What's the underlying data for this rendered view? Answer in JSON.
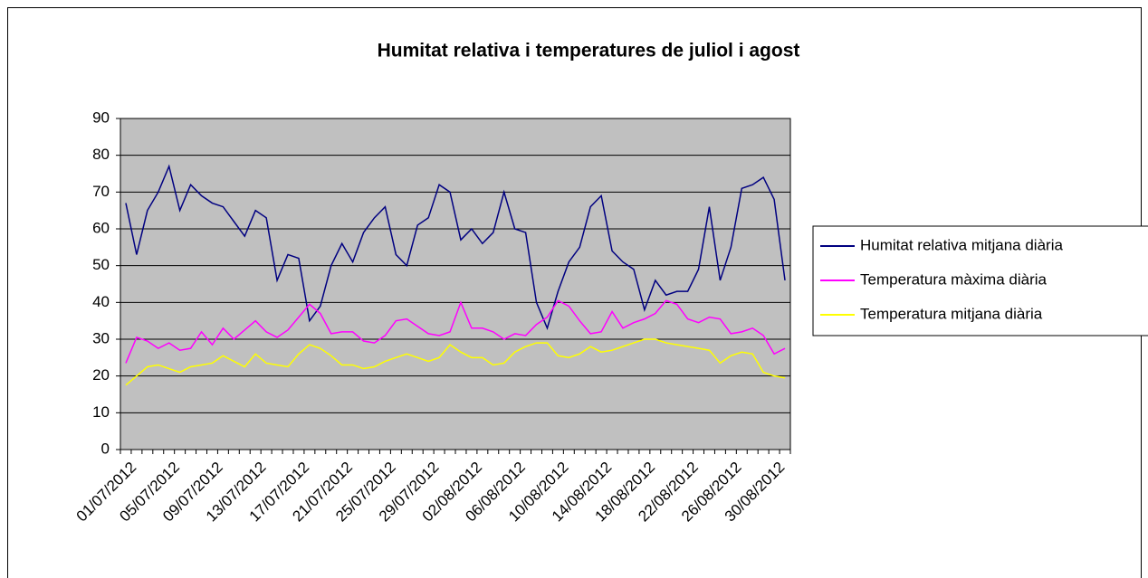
{
  "chart_data": {
    "type": "line",
    "title": "Humitat relativa i temperatures de juliol i agost",
    "categories": [
      "01/07/2012",
      null,
      null,
      null,
      "05/07/2012",
      null,
      null,
      null,
      "09/07/2012",
      null,
      null,
      null,
      "13/07/2012",
      null,
      null,
      null,
      "17/07/2012",
      null,
      null,
      null,
      "21/07/2012",
      null,
      null,
      null,
      "25/07/2012",
      null,
      null,
      null,
      "29/07/2012",
      null,
      null,
      null,
      "02/08/2012",
      null,
      null,
      null,
      "06/08/2012",
      null,
      null,
      null,
      "10/08/2012",
      null,
      null,
      null,
      "14/08/2012",
      null,
      null,
      null,
      "18/08/2012",
      null,
      null,
      null,
      "22/08/2012",
      null,
      null,
      null,
      "26/08/2012",
      null,
      null,
      null,
      "30/08/2012",
      null
    ],
    "series": [
      {
        "name": "Humitat relativa mitjana diària",
        "color": "#000080",
        "values": [
          67,
          53,
          65,
          70,
          77,
          65,
          72,
          69,
          67,
          66,
          62,
          58,
          65,
          63,
          46,
          53,
          52,
          35,
          39,
          50,
          56,
          51,
          59,
          63,
          66,
          53,
          50,
          61,
          63,
          72,
          70,
          57,
          60,
          56,
          59,
          70,
          60,
          59,
          40,
          33,
          43,
          51,
          55,
          66,
          69,
          54,
          51,
          49,
          38,
          46,
          42,
          43,
          43,
          49,
          66,
          46,
          55,
          71,
          72,
          74,
          68,
          46
        ]
      },
      {
        "name": "Temperatura màxima diària",
        "color": "#ff00ff",
        "values": [
          23.5,
          30.5,
          29.5,
          27.5,
          29,
          27,
          27.5,
          32,
          28.5,
          33,
          30,
          32.5,
          35,
          32,
          30.5,
          32.5,
          36,
          39.5,
          37,
          31.5,
          32,
          32,
          29.5,
          29,
          31,
          35,
          35.5,
          33.5,
          31.5,
          31,
          32,
          40,
          33,
          33,
          32,
          30,
          31.5,
          31,
          34,
          36,
          40.5,
          39,
          35,
          31.5,
          32,
          37.5,
          33,
          34.5,
          35.5,
          37,
          40.5,
          39.5,
          35.5,
          34.5,
          36,
          35.5,
          31.5,
          32,
          33,
          31,
          26,
          27.5
        ]
      },
      {
        "name": "Temperatura mitjana diària",
        "color": "#ffff00",
        "values": [
          17.5,
          20,
          22.5,
          23,
          22,
          21,
          22.5,
          23,
          23.5,
          25.5,
          24,
          22.5,
          26,
          23.5,
          23,
          22.5,
          26,
          28.5,
          27.5,
          25.5,
          23,
          23,
          22,
          22.5,
          24,
          25,
          26,
          25,
          24,
          25,
          28.5,
          26.5,
          25,
          25,
          23,
          23.5,
          26.5,
          28,
          29,
          29,
          25.5,
          25,
          26,
          28,
          26.5,
          27,
          28,
          29,
          30,
          30,
          29,
          28.5,
          28,
          27.5,
          27,
          23.5,
          25.5,
          26.5,
          26,
          21,
          20,
          19.5
        ]
      }
    ],
    "ylim": [
      0,
      90
    ],
    "yticks": [
      0,
      10,
      20,
      30,
      40,
      50,
      60,
      70,
      80,
      90
    ],
    "grid": true,
    "legend": "right"
  }
}
